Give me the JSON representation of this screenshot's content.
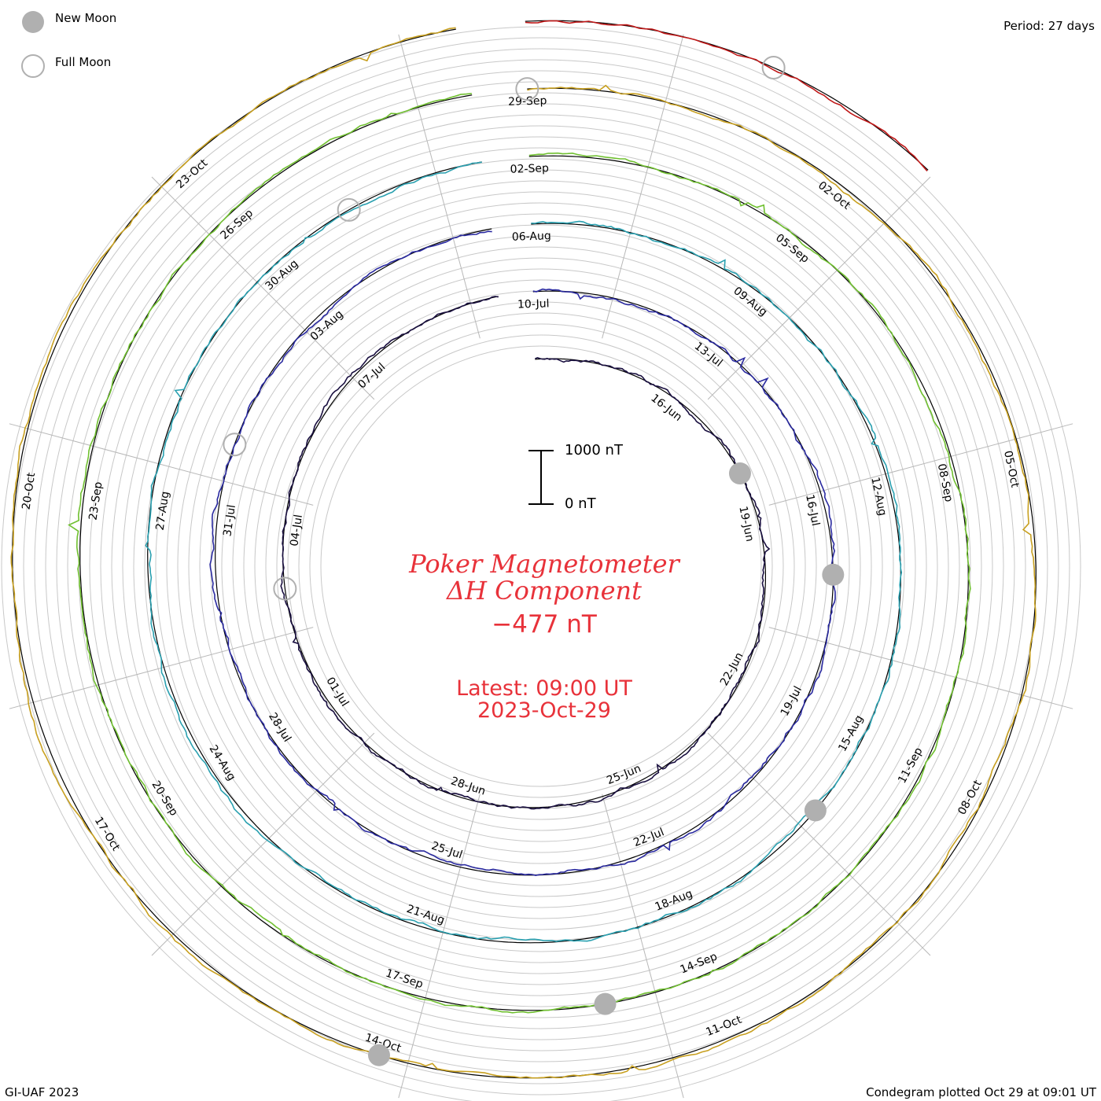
{
  "legend": {
    "new_moon": "New Moon",
    "full_moon": "Full Moon"
  },
  "header": {
    "period": "Period: 27 days"
  },
  "footer": {
    "credit": "GI-UAF 2023",
    "plotted": "Condegram plotted Oct 29 at 09:01 UT"
  },
  "title": {
    "line1": "Poker Magnetometer",
    "line2": "ΔH Component",
    "current_value": "−477 nT"
  },
  "latest": {
    "time": "Latest: 09:00 UT",
    "date": "2023-Oct-29"
  },
  "scale": {
    "top_label": "1000 nT",
    "bottom_label": "0 nT"
  },
  "colors": {
    "title": "#e8323a",
    "grid": "#c8c8c8",
    "moon_new": "#b0b0b0",
    "moon_full": "#b0b0b0"
  },
  "chart_data": {
    "type": "line",
    "subtype": "condegram spiral",
    "period_days": 27,
    "series": [
      {
        "name": "",
        "start": "2023-06-13",
        "end": "2023-07-09",
        "color": "#1a1040",
        "date_labels": [
          "16-Jun",
          "19-Jun",
          "22-Jun",
          "25-Jun",
          "28-Jun",
          "01-Jul",
          "04-Jul",
          "07-Jul"
        ]
      },
      {
        "name": "",
        "start": "2023-07-10",
        "end": "2023-08-05",
        "color": "#2a2aa0",
        "date_labels": [
          "10-Jul",
          "13-Jul",
          "16-Jul",
          "19-Jul",
          "22-Jul",
          "25-Jul",
          "28-Jul",
          "31-Jul",
          "03-Aug"
        ]
      },
      {
        "name": "",
        "start": "2023-08-06",
        "end": "2023-09-01",
        "color": "#2aa0b0",
        "date_labels": [
          "06-Aug",
          "09-Aug",
          "12-Aug",
          "15-Aug",
          "18-Aug",
          "21-Aug",
          "24-Aug",
          "27-Aug",
          "30-Aug"
        ]
      },
      {
        "name": "",
        "start": "2023-09-02",
        "end": "2023-09-28",
        "color": "#70c030",
        "date_labels": [
          "02-Sep",
          "05-Sep",
          "08-Sep",
          "11-Sep",
          "14-Sep",
          "17-Sep",
          "20-Sep",
          "23-Sep",
          "26-Sep"
        ]
      },
      {
        "name": "",
        "start": "2023-09-29",
        "end": "2023-10-25",
        "color": "#c8a020",
        "date_labels": [
          "29-Sep",
          "02-Oct",
          "05-Oct",
          "08-Oct",
          "11-Oct",
          "14-Oct",
          "17-Oct",
          "20-Oct",
          "23-Oct"
        ]
      },
      {
        "name": "",
        "start": "2023-10-26",
        "end": "2023-10-29",
        "color": "#c01818",
        "date_labels": []
      }
    ],
    "new_moons": [
      "2023-06-18",
      "2023-07-17",
      "2023-08-16",
      "2023-09-15",
      "2023-10-14"
    ],
    "full_moons": [
      "2023-07-03",
      "2023-08-01",
      "2023-08-31",
      "2023-09-29",
      "2023-10-28"
    ],
    "latest_value_nT": -477,
    "scale_nT": [
      0,
      1000
    ]
  }
}
